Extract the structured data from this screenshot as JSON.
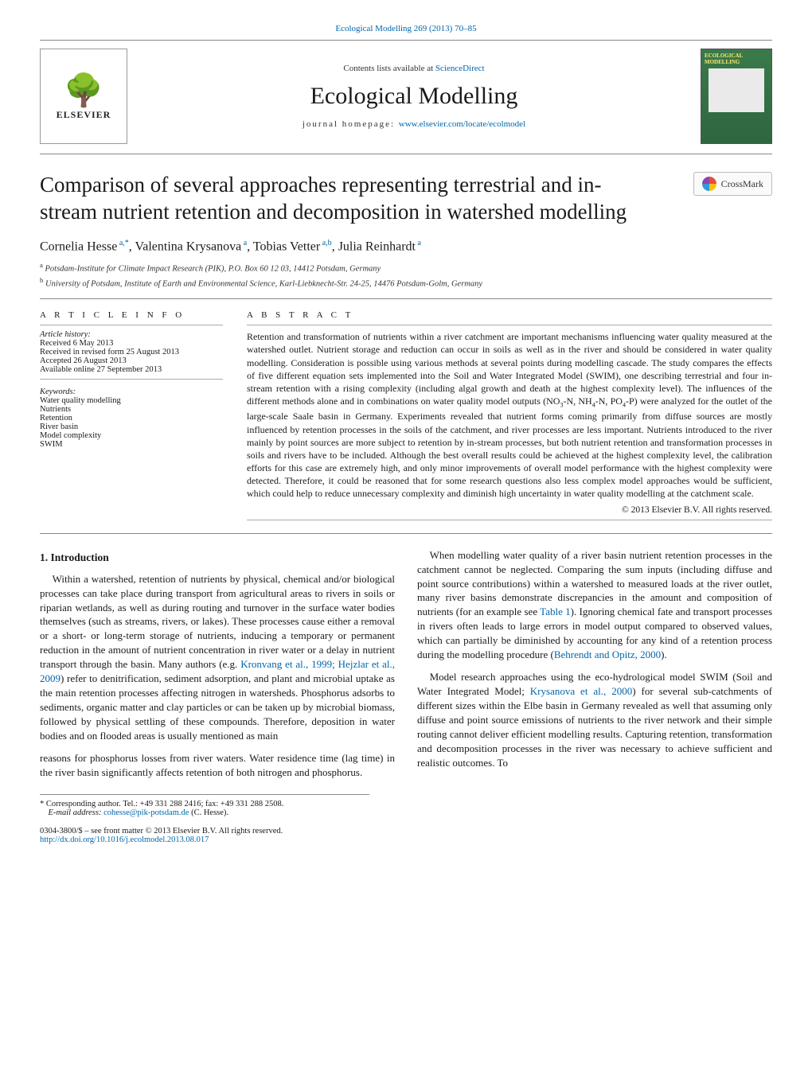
{
  "journal_ref": "Ecological Modelling 269 (2013) 70–85",
  "header": {
    "contents_prefix": "Contents lists available at ",
    "contents_link": "ScienceDirect",
    "journal_title": "Ecological Modelling",
    "homepage_prefix": "journal homepage: ",
    "homepage_link": "www.elsevier.com/locate/ecolmodel",
    "publisher_name": "ELSEVIER",
    "cover_label": "ECOLOGICAL MODELLING"
  },
  "crossmark_label": "CrossMark",
  "article": {
    "title": "Comparison of several approaches representing terrestrial and in-stream nutrient retention and decomposition in watershed modelling",
    "authors_html": "Cornelia Hesse<sup> a,*</sup>, Valentina Krysanova<sup> a</sup>, Tobias Vetter<sup> a,b</sup>, Julia Reinhardt<sup> a</sup>",
    "affiliations": {
      "a": "Potsdam-Institute for Climate Impact Research (PIK), P.O. Box 60 12 03, 14412 Potsdam, Germany",
      "b": "University of Potsdam, Institute of Earth and Environmental Science, Karl-Liebknecht-Str. 24-25, 14476 Potsdam-Golm, Germany"
    }
  },
  "info": {
    "head": "a r t i c l e   i n f o",
    "history_label": "Article history:",
    "history": [
      "Received 6 May 2013",
      "Received in revised form 25 August 2013",
      "Accepted 26 August 2013",
      "Available online 27 September 2013"
    ],
    "keywords_label": "Keywords:",
    "keywords": [
      "Water quality modelling",
      "Nutrients",
      "Retention",
      "River basin",
      "Model complexity",
      "SWIM"
    ]
  },
  "abstract": {
    "head": "a b s t r a c t",
    "text": "Retention and transformation of nutrients within a river catchment are important mechanisms influencing water quality measured at the watershed outlet. Nutrient storage and reduction can occur in soils as well as in the river and should be considered in water quality modelling. Consideration is possible using various methods at several points during modelling cascade. The study compares the effects of five different equation sets implemented into the Soil and Water Integrated Model (SWIM), one describing terrestrial and four in-stream retention with a rising complexity (including algal growth and death at the highest complexity level). The influences of the different methods alone and in combinations on water quality model outputs (NO3-N, NH4-N, PO4-P) were analyzed for the outlet of the large-scale Saale basin in Germany. Experiments revealed that nutrient forms coming primarily from diffuse sources are mostly influenced by retention processes in the soils of the catchment, and river processes are less important. Nutrients introduced to the river mainly by point sources are more subject to retention by in-stream processes, but both nutrient retention and transformation processes in soils and rivers have to be included. Although the best overall results could be achieved at the highest complexity level, the calibration efforts for this case are extremely high, and only minor improvements of overall model performance with the highest complexity were detected. Therefore, it could be reasoned that for some research questions also less complex model approaches would be sufficient, which could help to reduce unnecessary complexity and diminish high uncertainty in water quality modelling at the catchment scale.",
    "copyright": "© 2013 Elsevier B.V. All rights reserved."
  },
  "body": {
    "section_heading": "1.  Introduction",
    "p1": "Within a watershed, retention of nutrients by physical, chemical and/or biological processes can take place during transport from agricultural areas to rivers in soils or riparian wetlands, as well as during routing and turnover in the surface water bodies themselves (such as streams, rivers, or lakes). These processes cause either a removal or a short- or long-term storage of nutrients, inducing a temporary or permanent reduction in the amount of nutrient concentration in river water or a delay in nutrient transport through the basin. Many authors (e.g. ",
    "p1_cite": "Kronvang et al., 1999; Hejzlar et al., 2009",
    "p1b": ") refer to denitrification, sediment adsorption, and plant and microbial uptake as the main retention processes affecting nitrogen in watersheds. Phosphorus adsorbs to sediments, organic matter and clay particles or can be taken up by microbial biomass, followed by physical settling of these compounds. Therefore, deposition in water bodies and on flooded areas is usually mentioned as main",
    "p2": "reasons for phosphorus losses from river waters. Water residence time (lag time) in the river basin significantly affects retention of both nitrogen and phosphorus.",
    "p3a": "When modelling water quality of a river basin nutrient retention processes in the catchment cannot be neglected. Comparing the sum inputs (including diffuse and point source contributions) within a watershed to measured loads at the river outlet, many river basins demonstrate discrepancies in the amount and composition of nutrients (for an example see ",
    "p3_cite1": "Table 1",
    "p3b": "). Ignoring chemical fate and transport processes in rivers often leads to large errors in model output compared to observed values, which can partially be diminished by accounting for any kind of a retention process during the modelling procedure (",
    "p3_cite2": "Behrendt and Opitz, 2000",
    "p3c": ").",
    "p4a": "Model research approaches using the eco-hydrological model SWIM (Soil and Water Integrated Model; ",
    "p4_cite": "Krysanova et al., 2000",
    "p4b": ") for several sub-catchments of different sizes within the Elbe basin in Germany revealed as well that assuming only diffuse and point source emissions of nutrients to the river network and their simple routing cannot deliver efficient modelling results. Capturing retention, transformation and decomposition processes in the river was necessary to achieve sufficient and realistic outcomes. To"
  },
  "footnotes": {
    "corr": "* Corresponding author. Tel.: +49 331 288 2416; fax: +49 331 288 2508.",
    "email_label": "E-mail address: ",
    "email": "cohesse@pik-potsdam.de",
    "email_who": " (C. Hesse)."
  },
  "issn": {
    "line1": "0304-3800/$ – see front matter © 2013 Elsevier B.V. All rights reserved.",
    "doi": "http://dx.doi.org/10.1016/j.ecolmodel.2013.08.017"
  },
  "colors": {
    "link": "#0066aa",
    "rule": "#888888",
    "cover_bg": "#3a7a4a"
  }
}
